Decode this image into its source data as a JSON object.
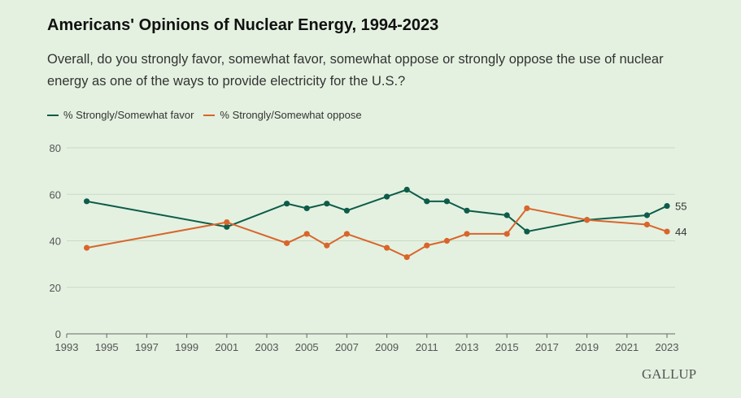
{
  "chart_data": {
    "type": "line",
    "title": "Americans' Opinions of Nuclear Energy, 1994-2023",
    "subtitle": "Overall, do you strongly favor, somewhat favor, somewhat oppose or strongly oppose the use of nuclear energy as one of the ways to provide electricity for the U.S.?",
    "x": [
      1994,
      2001,
      2004,
      2005,
      2006,
      2007,
      2009,
      2010,
      2011,
      2012,
      2013,
      2015,
      2016,
      2019,
      2022,
      2023
    ],
    "series": [
      {
        "name": "% Strongly/Somewhat favor",
        "color": "#0d5c4a",
        "values": [
          57,
          46,
          56,
          54,
          56,
          53,
          59,
          62,
          57,
          57,
          53,
          51,
          44,
          49,
          51,
          55
        ],
        "end_label": "55"
      },
      {
        "name": "% Strongly/Somewhat oppose",
        "color": "#d9652c",
        "values": [
          37,
          48,
          39,
          43,
          38,
          43,
          37,
          33,
          38,
          40,
          43,
          43,
          54,
          49,
          47,
          44
        ],
        "end_label": "44"
      }
    ],
    "xlim": [
      1993,
      2023
    ],
    "ylim": [
      0,
      80
    ],
    "x_ticks": [
      "1993",
      "1995",
      "1997",
      "1999",
      "2001",
      "2003",
      "2005",
      "2007",
      "2009",
      "2011",
      "2013",
      "2015",
      "2017",
      "2019",
      "2021",
      "2023"
    ],
    "y_ticks": [
      "0",
      "20",
      "40",
      "60",
      "80"
    ],
    "grid": true,
    "legend": "top-left"
  },
  "brand": "GALLUP"
}
